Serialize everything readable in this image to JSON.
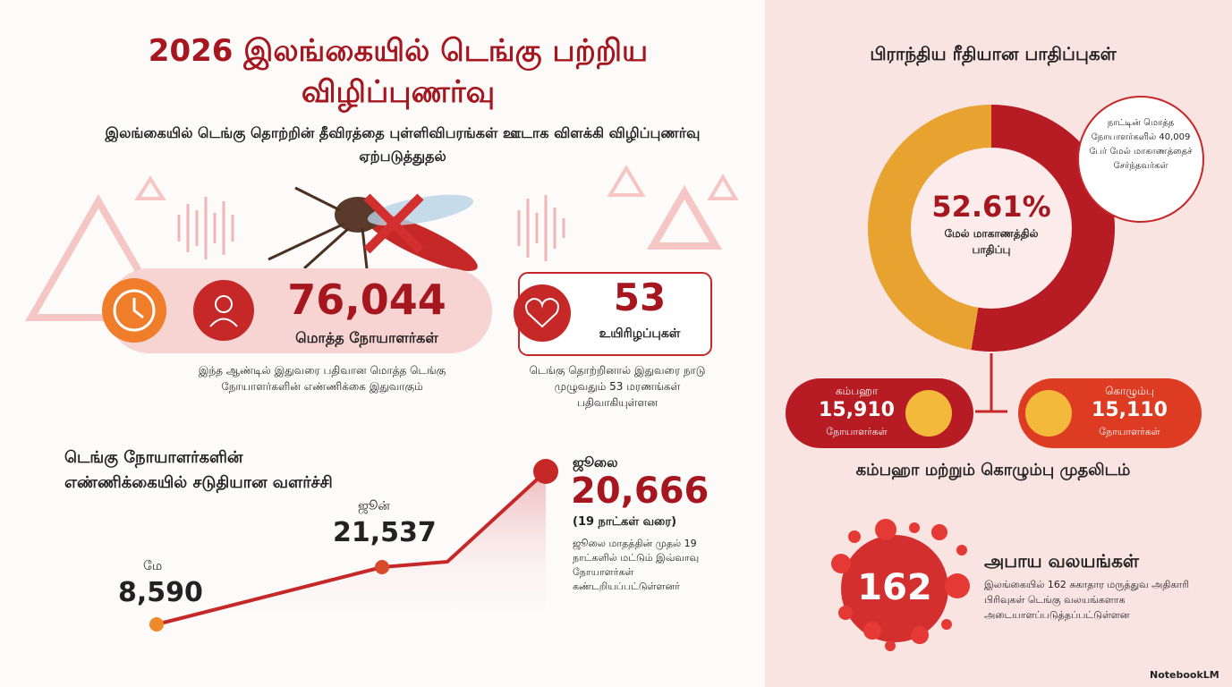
{
  "header": {
    "title": "2026 இலங்கையில் டெங்கு பற்றிய விழிப்புணர்வு",
    "subtitle": "இலங்கையில் டெங்கு தொற்றின் தீவிரத்தை புள்ளிவிபரங்கள் ஊடாக விளக்கி விழிப்புணர்வு ஏற்படுத்துதல்"
  },
  "stats": [
    {
      "value": "76,044",
      "label": "மொத்த நோயாளர்கள்",
      "note": "இந்த ஆண்டில் இதுவரை பதிவான மொத்த டெங்கு நோயாளர்களின் எண்ணிக்கை இதுவாகும்"
    },
    {
      "value": "53",
      "label": "உயிரிழப்புகள்",
      "note": "டெங்கு தொற்றினால் இதுவரை நாடு முழுவதும் 53 மரணங்கள் பதிவாகியுள்ளன"
    }
  ],
  "growth": {
    "title": "டெங்கு நோயாளர்களின் எண்ணிக்கையில் சடுதியான வளர்ச்சி",
    "points": [
      {
        "month": "மே",
        "value": "8,590"
      },
      {
        "month": "ஜூன்",
        "value": "21,537"
      },
      {
        "month": "ஜூலை",
        "value": "20,666",
        "period": "(19 நாட்கள் வரை)",
        "note": "ஜூலை மாதத்தின் முதல் 19 நாட்களில் மட்டும் இவ்வாவு நோயாளர்கள் கண்டறியப்பட்டுள்ளனர்"
      }
    ]
  },
  "region": {
    "title": "பிராந்திய ரீதியான பாதிப்புகள்",
    "share": {
      "value": 52.61,
      "label": "52.61%"
    },
    "share_caption": "மேல் மாகாணத்தில் பாதிப்பு",
    "callout": "நாட்டின் மொத்த நோயாளர்களில் 40,009 பேர் மேல் மாகாணத்தைச் சேர்ந்தவர்கள்",
    "districts": [
      {
        "name": "கம்பஹா",
        "value": "15,910",
        "unit": "நோயாளர்கள்"
      },
      {
        "name": "கொழும்பு",
        "value": "15,110",
        "unit": "நோயாளர்கள்"
      }
    ],
    "districts_caption": "கம்பஹா மற்றும் கொழும்பு முதலிடம்"
  },
  "zones": {
    "count": "162",
    "title": "அபாய வலயங்கள்",
    "note": "இலங்கையில் 162 சுகாதார மருத்துவ அதிகாரி பிரிவுகள் டெங்கு வலயங்களாக அடையாளப்படுத்தப்பட்டுள்ளன"
  },
  "brand": "NotebookLM"
}
